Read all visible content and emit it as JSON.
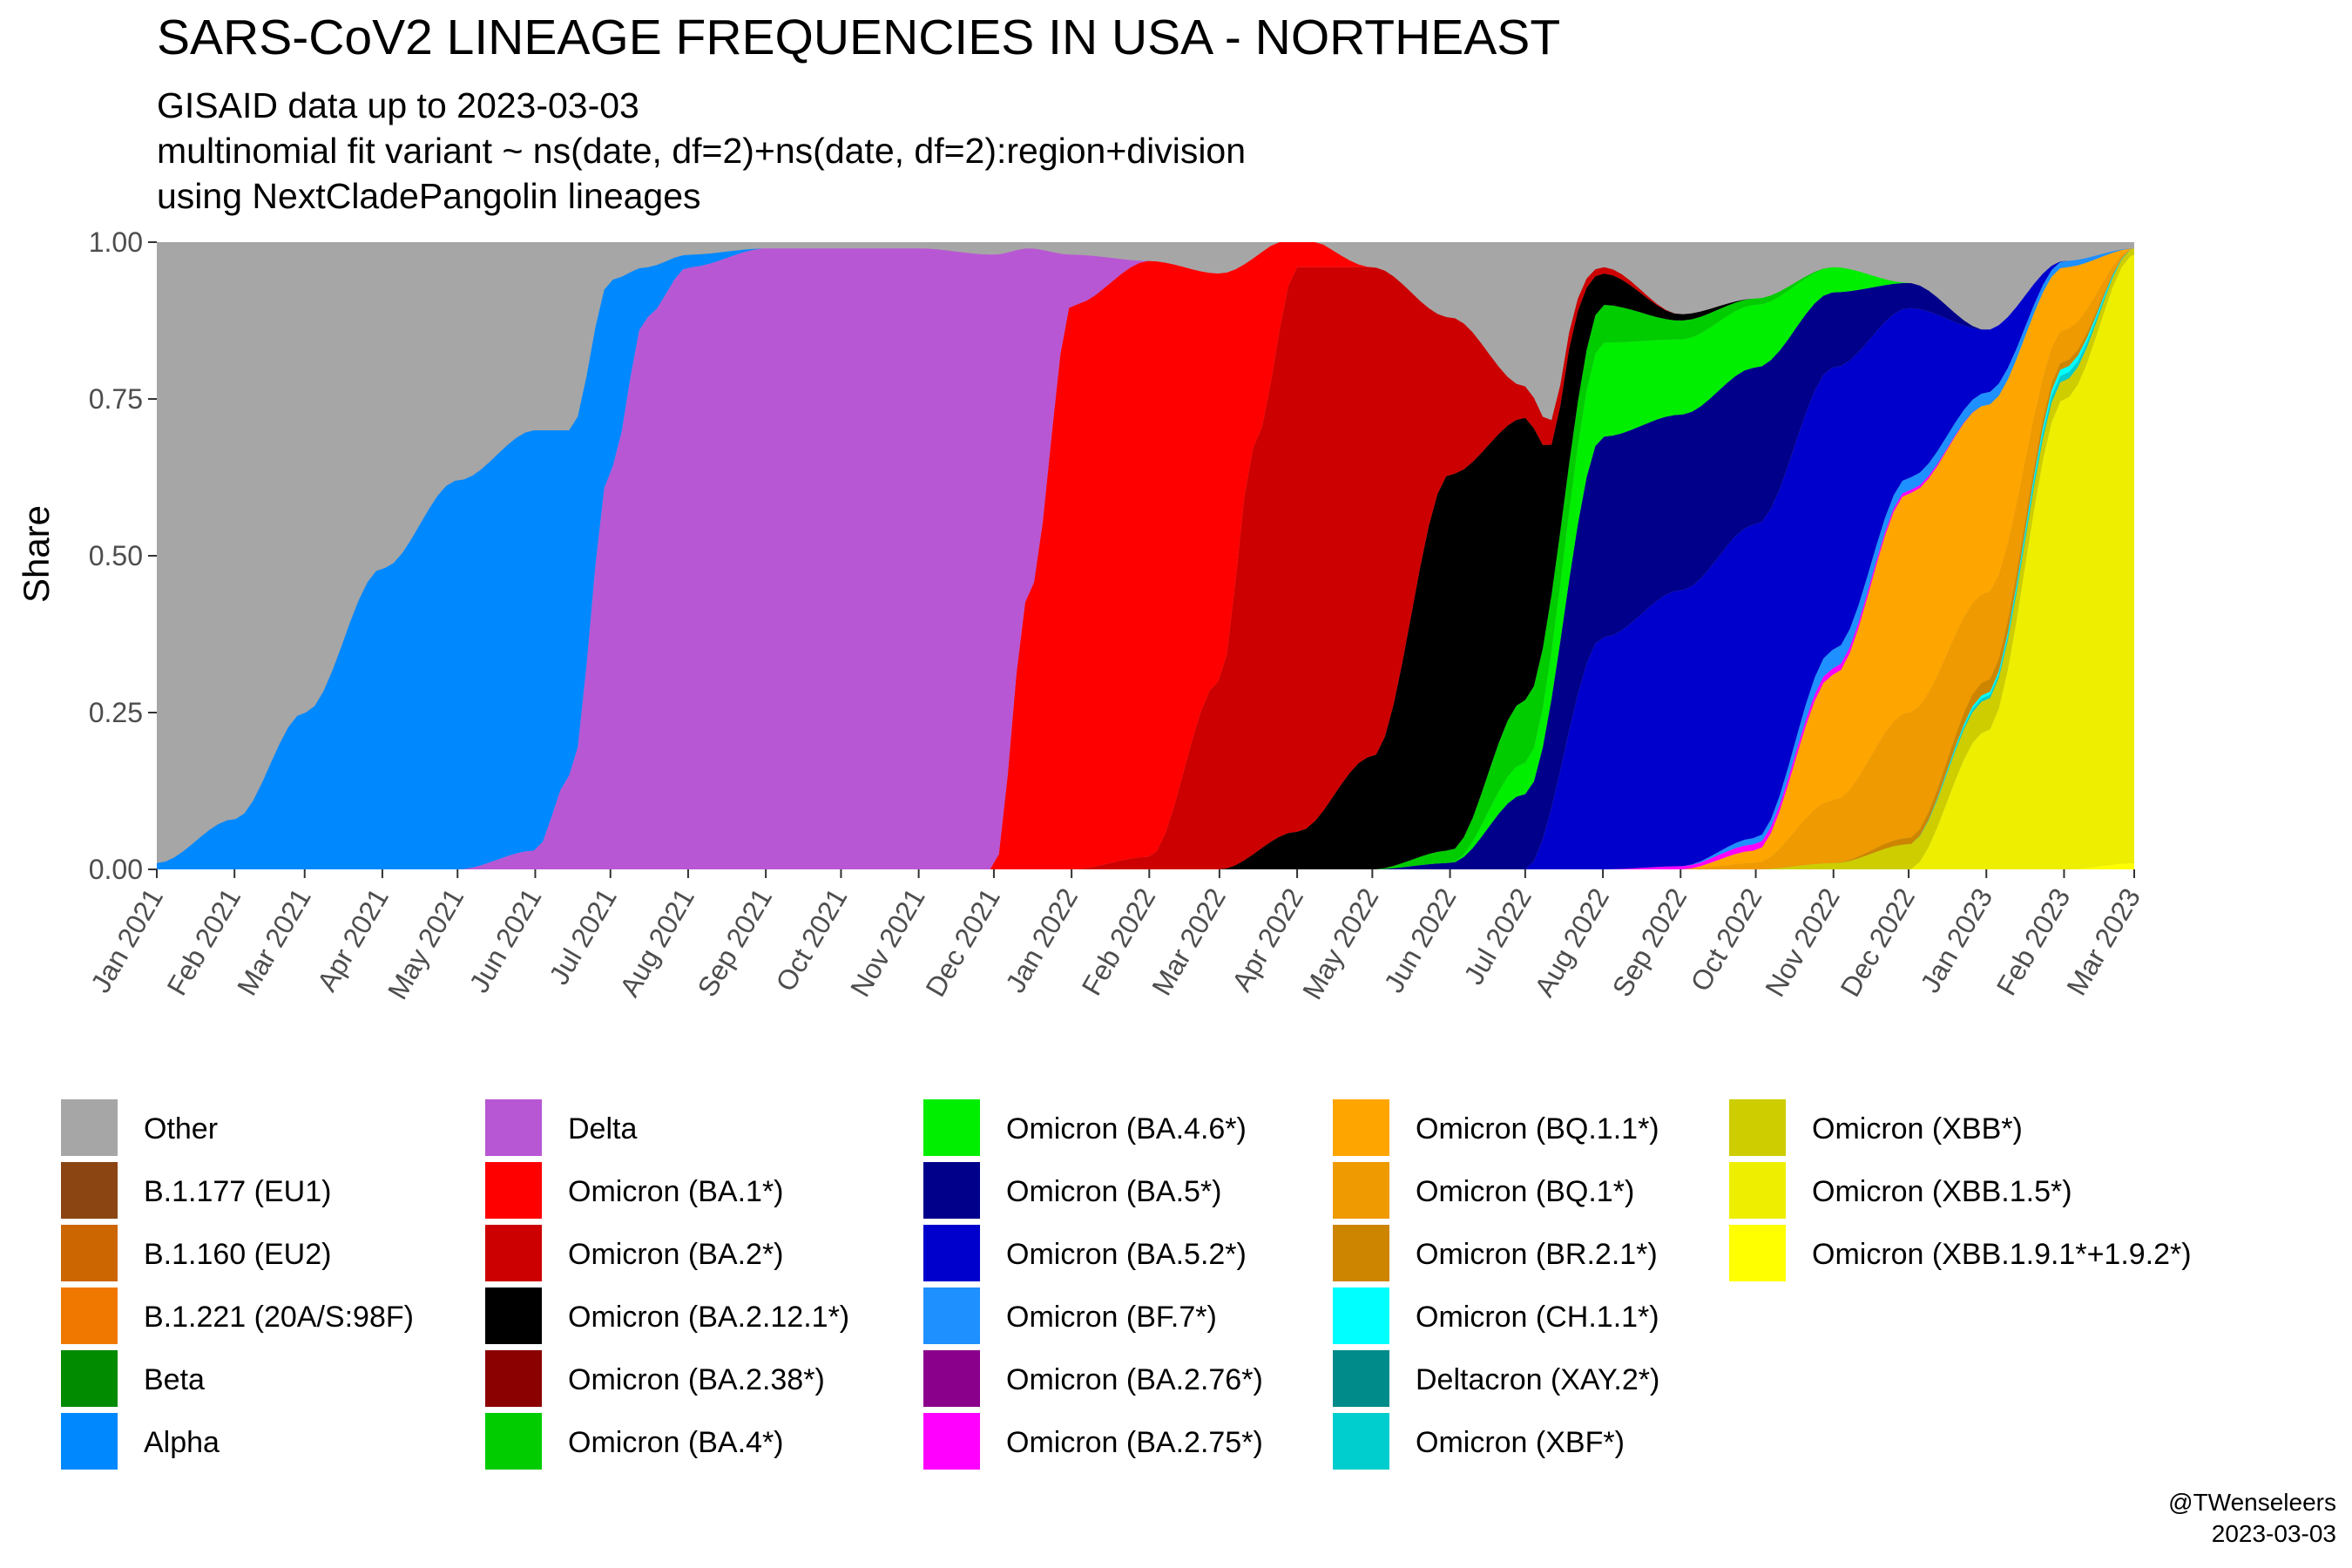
{
  "title": "SARS-CoV2 LINEAGE FREQUENCIES IN USA - NORTHEAST",
  "subtitle_lines": [
    "GISAID data up to 2023-03-03",
    "multinomial fit variant ~ ns(date, df=2)+ns(date, df=2):region+division",
    "using NextCladePangolin lineages"
  ],
  "credit": {
    "handle": "@TWenseleers",
    "date": "2023-03-03"
  },
  "chart_data": {
    "type": "area",
    "stacked": true,
    "xlabel": "",
    "ylabel": "Share",
    "x_range": [
      "2021-01-01",
      "2023-03-01"
    ],
    "ylim": [
      0,
      1
    ],
    "y_ticks": [
      0.0,
      0.25,
      0.5,
      0.75,
      1.0
    ],
    "y_tick_labels": [
      "0.00",
      "0.25",
      "0.50",
      "0.75",
      "1.00"
    ],
    "x_ticks": [
      "2021-01-01",
      "2021-02-01",
      "2021-03-01",
      "2021-04-01",
      "2021-05-01",
      "2021-06-01",
      "2021-07-01",
      "2021-08-01",
      "2021-09-01",
      "2021-10-01",
      "2021-11-01",
      "2021-12-01",
      "2022-01-01",
      "2022-02-01",
      "2022-03-01",
      "2022-04-01",
      "2022-05-01",
      "2022-06-01",
      "2022-07-01",
      "2022-08-01",
      "2022-09-01",
      "2022-10-01",
      "2022-11-01",
      "2022-12-01",
      "2023-01-01",
      "2023-02-01",
      "2023-03-01"
    ],
    "x_tick_labels": [
      "Jan 2021",
      "Feb 2021",
      "Mar 2021",
      "Apr 2021",
      "May 2021",
      "Jun 2021",
      "Jul 2021",
      "Aug 2021",
      "Sep 2021",
      "Oct 2021",
      "Nov 2021",
      "Dec 2021",
      "Jan 2022",
      "Feb 2022",
      "Mar 2022",
      "Apr 2022",
      "May 2022",
      "Jun 2022",
      "Jul 2022",
      "Aug 2022",
      "Sep 2022",
      "Oct 2022",
      "Nov 2022",
      "Dec 2022",
      "Jan 2023",
      "Feb 2023",
      "Mar 2023"
    ],
    "grid": false,
    "background": "#a6a6a6",
    "legend_position": "bottom",
    "legend_columns": 5,
    "series_order_bottom_to_top": [
      "Omicron (XBB.1.9.1*+1.9.2*)",
      "Omicron (XBB.1.5*)",
      "Omicron (XBB*)",
      "Omicron (XBF*)",
      "Deltacron (XAY.2*)",
      "Omicron (CH.1.1*)",
      "Omicron (BR.2.1*)",
      "Omicron (BQ.1*)",
      "Omicron (BQ.1.1*)",
      "Omicron (BA.2.75*)",
      "Omicron (BA.2.76*)",
      "Omicron (BF.7*)",
      "Omicron (BA.5.2*)",
      "Omicron (BA.5*)",
      "Omicron (BA.4.6*)",
      "Omicron (BA.4*)",
      "Omicron (BA.2.38*)",
      "Omicron (BA.2.12.1*)",
      "Omicron (BA.2*)",
      "Omicron (BA.1*)",
      "Delta",
      "Alpha",
      "Beta",
      "B.1.221 (20A/S:98F)",
      "B.1.160 (EU2)",
      "B.1.177 (EU1)",
      "Other"
    ],
    "series": [
      {
        "name": "Other",
        "color": "#a6a6a6",
        "values": null,
        "note_remainder": true
      },
      {
        "name": "B.1.177 (EU1)",
        "color": "#8b4513",
        "x": [],
        "values": []
      },
      {
        "name": "B.1.160 (EU2)",
        "color": "#cc6600",
        "x": [],
        "values": []
      },
      {
        "name": "B.1.221 (20A/S:98F)",
        "color": "#f07800",
        "x": [],
        "values": []
      },
      {
        "name": "Beta",
        "color": "#008b00",
        "x": [],
        "values": []
      },
      {
        "name": "Alpha",
        "color": "#0088ff",
        "x": [
          "2021-01-01",
          "2021-02-01",
          "2021-03-01",
          "2021-04-01",
          "2021-05-01",
          "2021-06-01",
          "2021-06-15",
          "2021-07-01",
          "2021-07-15",
          "2021-08-01",
          "2021-09-01"
        ],
        "values": [
          0.01,
          0.08,
          0.25,
          0.48,
          0.62,
          0.67,
          0.55,
          0.3,
          0.08,
          0.02,
          0.0
        ]
      },
      {
        "name": "Delta",
        "color": "#b857d4",
        "x": [
          "2021-05-01",
          "2021-06-01",
          "2021-06-15",
          "2021-07-01",
          "2021-07-15",
          "2021-08-01",
          "2021-09-01",
          "2021-10-01",
          "2021-11-01",
          "2021-12-01",
          "2021-12-15",
          "2022-01-01",
          "2022-02-01"
        ],
        "values": [
          0.0,
          0.03,
          0.15,
          0.64,
          0.88,
          0.96,
          0.99,
          0.99,
          0.99,
          0.98,
          0.55,
          0.08,
          0.0
        ]
      },
      {
        "name": "Omicron (BA.1*)",
        "color": "#ff0000",
        "x": [
          "2021-12-01",
          "2021-12-15",
          "2022-01-01",
          "2022-02-01",
          "2022-03-01",
          "2022-03-15",
          "2022-04-01",
          "2022-05-01"
        ],
        "values": [
          0.0,
          0.44,
          0.9,
          0.95,
          0.65,
          0.3,
          0.05,
          0.0
        ]
      },
      {
        "name": "Omicron (BA.2*)",
        "color": "#cc0000",
        "x": [
          "2022-01-01",
          "2022-02-01",
          "2022-03-01",
          "2022-03-15",
          "2022-04-01",
          "2022-05-01",
          "2022-06-01",
          "2022-07-01",
          "2022-08-01",
          "2022-09-01"
        ],
        "values": [
          0.0,
          0.02,
          0.3,
          0.65,
          0.9,
          0.78,
          0.25,
          0.05,
          0.01,
          0.0
        ]
      },
      {
        "name": "Omicron (BA.2.12.1*)",
        "color": "#000000",
        "x": [
          "2022-03-01",
          "2022-04-01",
          "2022-05-01",
          "2022-06-01",
          "2022-07-01",
          "2022-07-15",
          "2022-08-01",
          "2022-09-01",
          "2022-10-01"
        ],
        "values": [
          0.0,
          0.06,
          0.18,
          0.6,
          0.45,
          0.2,
          0.05,
          0.01,
          0.0
        ]
      },
      {
        "name": "Omicron (BA.2.38*)",
        "color": "#8b0000",
        "x": [],
        "values": []
      },
      {
        "name": "Omicron (BA.4*)",
        "color": "#00cc00",
        "x": [
          "2022-05-01",
          "2022-06-01",
          "2022-07-01",
          "2022-08-01",
          "2022-09-01",
          "2022-10-01",
          "2022-11-01"
        ],
        "values": [
          0.0,
          0.02,
          0.1,
          0.06,
          0.03,
          0.01,
          0.0
        ]
      },
      {
        "name": "Omicron (BA.4.6*)",
        "color": "#00ee00",
        "x": [
          "2022-06-01",
          "2022-07-01",
          "2022-08-01",
          "2022-09-01",
          "2022-10-01",
          "2022-11-01",
          "2022-12-01"
        ],
        "values": [
          0.0,
          0.05,
          0.15,
          0.12,
          0.1,
          0.04,
          0.0
        ]
      },
      {
        "name": "Omicron (BA.5*)",
        "color": "#00008b",
        "x": [
          "2022-05-01",
          "2022-06-01",
          "2022-07-01",
          "2022-08-01",
          "2022-09-01",
          "2022-10-01",
          "2022-11-01",
          "2022-12-01",
          "2023-01-01"
        ],
        "values": [
          0.0,
          0.01,
          0.12,
          0.32,
          0.28,
          0.25,
          0.12,
          0.04,
          0.0
        ]
      },
      {
        "name": "Omicron (BA.5.2*)",
        "color": "#0000cd",
        "x": [
          "2022-06-01",
          "2022-07-01",
          "2022-08-01",
          "2022-09-01",
          "2022-10-01",
          "2022-11-01",
          "2022-12-01",
          "2023-01-01",
          "2023-02-01"
        ],
        "values": [
          0.0,
          0.0,
          0.37,
          0.44,
          0.5,
          0.45,
          0.27,
          0.1,
          0.0
        ]
      },
      {
        "name": "Omicron (BF.7*)",
        "color": "#1e90ff",
        "x": [
          "2022-09-01",
          "2022-10-01",
          "2022-11-01",
          "2022-12-01",
          "2023-01-01",
          "2023-02-01",
          "2023-03-01"
        ],
        "values": [
          0.0,
          0.01,
          0.03,
          0.02,
          0.02,
          0.01,
          0.0
        ]
      },
      {
        "name": "Omicron (BA.2.76*)",
        "color": "#8b008b",
        "x": [],
        "values": []
      },
      {
        "name": "Omicron (BA.2.75*)",
        "color": "#ff00ff",
        "x": [
          "2022-08-01",
          "2022-09-01",
          "2022-10-01",
          "2022-11-01",
          "2022-12-01",
          "2023-01-01"
        ],
        "values": [
          0.0,
          0.005,
          0.01,
          0.01,
          0.005,
          0.0
        ]
      },
      {
        "name": "Omicron (BQ.1.1*)",
        "color": "#ffa500",
        "x": [
          "2022-09-01",
          "2022-10-01",
          "2022-11-01",
          "2022-12-01",
          "2023-01-01",
          "2023-02-01",
          "2023-03-01"
        ],
        "values": [
          0.0,
          0.02,
          0.2,
          0.35,
          0.3,
          0.1,
          0.0
        ]
      },
      {
        "name": "Omicron (BQ.1*)",
        "color": "#ee9a00",
        "x": [
          "2022-09-01",
          "2022-10-01",
          "2022-11-01",
          "2022-12-01",
          "2023-01-01",
          "2023-02-01",
          "2023-03-01"
        ],
        "values": [
          0.0,
          0.01,
          0.1,
          0.2,
          0.14,
          0.05,
          0.0
        ]
      },
      {
        "name": "Omicron (BR.2.1*)",
        "color": "#cd8500",
        "x": [
          "2022-11-01",
          "2022-12-01",
          "2023-01-01",
          "2023-02-01",
          "2023-03-01"
        ],
        "values": [
          0.0,
          0.01,
          0.02,
          0.01,
          0.0
        ]
      },
      {
        "name": "Omicron (CH.1.1*)",
        "color": "#00ffff",
        "x": [
          "2022-12-01",
          "2023-01-01",
          "2023-02-01",
          "2023-03-01"
        ],
        "values": [
          0.0,
          0.005,
          0.01,
          0.0
        ]
      },
      {
        "name": "Deltacron (XAY.2*)",
        "color": "#008b8b",
        "x": [],
        "values": []
      },
      {
        "name": "Omicron (XBF*)",
        "color": "#00cdcd",
        "x": [
          "2022-12-01",
          "2023-01-01",
          "2023-02-01",
          "2023-03-01"
        ],
        "values": [
          0.0,
          0.005,
          0.01,
          0.0
        ]
      },
      {
        "name": "Omicron (XBB*)",
        "color": "#cdcd00",
        "x": [
          "2022-10-01",
          "2022-11-01",
          "2022-12-01",
          "2023-01-01",
          "2023-02-01",
          "2023-03-01"
        ],
        "values": [
          0.0,
          0.01,
          0.04,
          0.05,
          0.03,
          0.01
        ]
      },
      {
        "name": "Omicron (XBB.1.5*)",
        "color": "#eeee00",
        "x": [
          "2022-12-01",
          "2023-01-01",
          "2023-02-01",
          "2023-03-01"
        ],
        "values": [
          0.0,
          0.22,
          0.75,
          0.97
        ]
      },
      {
        "name": "Omicron (XBB.1.9.1*+1.9.2*)",
        "color": "#ffff00",
        "x": [
          "2023-02-01",
          "2023-03-01"
        ],
        "values": [
          0.0,
          0.01
        ]
      }
    ]
  },
  "legend": {
    "columns": [
      [
        {
          "label": "Other",
          "color": "#a6a6a6"
        },
        {
          "label": "B.1.177 (EU1)",
          "color": "#8b4513"
        },
        {
          "label": "B.1.160 (EU2)",
          "color": "#cc6600"
        },
        {
          "label": "B.1.221 (20A/S:98F)",
          "color": "#f07800"
        },
        {
          "label": "Beta",
          "color": "#008b00"
        },
        {
          "label": "Alpha",
          "color": "#0088ff"
        }
      ],
      [
        {
          "label": "Delta",
          "color": "#b857d4"
        },
        {
          "label": "Omicron (BA.1*)",
          "color": "#ff0000"
        },
        {
          "label": "Omicron (BA.2*)",
          "color": "#cc0000"
        },
        {
          "label": "Omicron (BA.2.12.1*)",
          "color": "#000000"
        },
        {
          "label": "Omicron (BA.2.38*)",
          "color": "#8b0000"
        },
        {
          "label": "Omicron (BA.4*)",
          "color": "#00cc00"
        }
      ],
      [
        {
          "label": "Omicron (BA.4.6*)",
          "color": "#00ee00"
        },
        {
          "label": "Omicron (BA.5*)",
          "color": "#00008b"
        },
        {
          "label": "Omicron (BA.5.2*)",
          "color": "#0000cd"
        },
        {
          "label": "Omicron (BF.7*)",
          "color": "#1e90ff"
        },
        {
          "label": "Omicron (BA.2.76*)",
          "color": "#8b008b"
        },
        {
          "label": "Omicron (BA.2.75*)",
          "color": "#ff00ff"
        }
      ],
      [
        {
          "label": "Omicron (BQ.1.1*)",
          "color": "#ffa500"
        },
        {
          "label": "Omicron (BQ.1*)",
          "color": "#ee9a00"
        },
        {
          "label": "Omicron (BR.2.1*)",
          "color": "#cd8500"
        },
        {
          "label": "Omicron (CH.1.1*)",
          "color": "#00ffff"
        },
        {
          "label": "Deltacron (XAY.2*)",
          "color": "#008b8b"
        },
        {
          "label": "Omicron (XBF*)",
          "color": "#00cdcd"
        }
      ],
      [
        {
          "label": "Omicron (XBB*)",
          "color": "#cdcd00"
        },
        {
          "label": "Omicron (XBB.1.5*)",
          "color": "#eeee00"
        },
        {
          "label": "Omicron (XBB.1.9.1*+1.9.2*)",
          "color": "#ffff00"
        }
      ]
    ]
  }
}
